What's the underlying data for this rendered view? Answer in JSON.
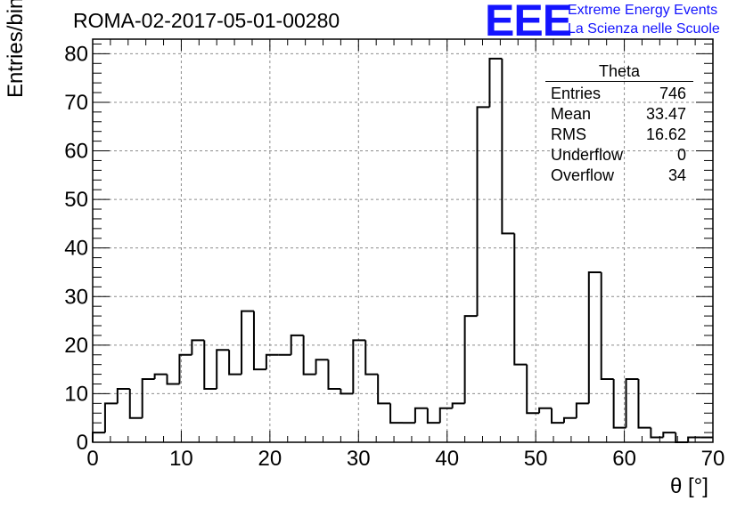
{
  "chart_data": {
    "type": "bar",
    "title": "ROMA-02-2017-05-01-00280",
    "xlabel": "θ [°]",
    "ylabel": "Entries/bin",
    "xlim": [
      0,
      70
    ],
    "ylim": [
      0,
      83
    ],
    "x_ticks": [
      0,
      10,
      20,
      30,
      40,
      50,
      60,
      70
    ],
    "y_ticks": [
      0,
      10,
      20,
      30,
      40,
      50,
      60,
      70,
      80
    ],
    "grid": true,
    "bin_edges_start": 0,
    "bin_width": 1.4,
    "values": [
      2,
      8,
      11,
      5,
      13,
      14,
      12,
      18,
      21,
      11,
      19,
      14,
      27,
      15,
      18,
      18,
      22,
      14,
      17,
      11,
      10,
      21,
      14,
      8,
      4,
      4,
      7,
      4,
      7,
      8,
      26,
      69,
      79,
      43,
      16,
      6,
      7,
      4,
      5,
      8,
      35,
      13,
      3,
      13,
      3,
      1,
      2,
      0,
      1,
      1
    ]
  },
  "logo": {
    "mark": "EEE",
    "line1": "Extreme Energy Events",
    "line2": "La Scienza nelle Scuole",
    "color": "#1414ff"
  },
  "stats": {
    "title": "Theta",
    "rows": [
      {
        "label": "Entries",
        "value": "746"
      },
      {
        "label": "Mean",
        "value": "33.47"
      },
      {
        "label": "RMS",
        "value": "16.62"
      },
      {
        "label": "Underflow",
        "value": "0"
      },
      {
        "label": "Overflow",
        "value": "34"
      }
    ]
  }
}
